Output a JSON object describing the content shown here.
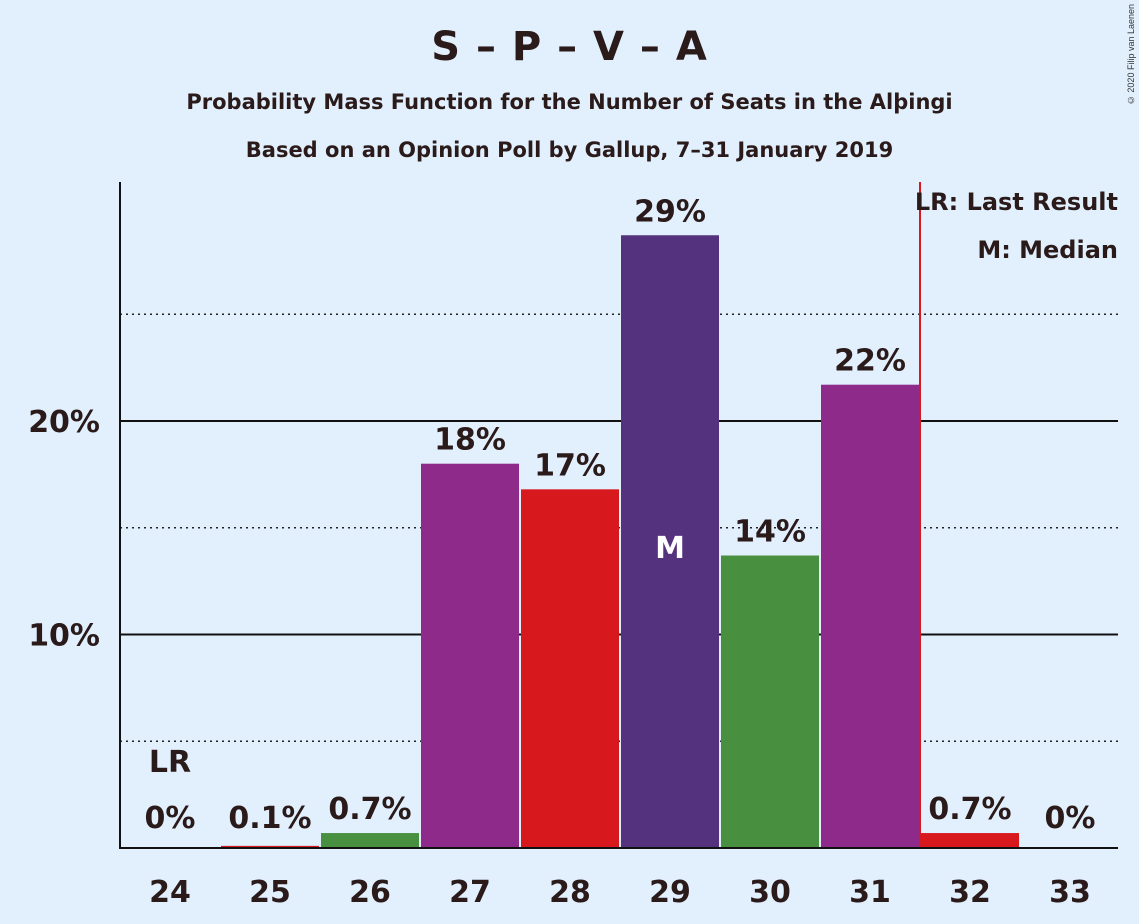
{
  "title": "S – P – V – A",
  "subtitle": "Probability Mass Function for the Number of Seats in the Alþingi",
  "subtitle2": "Based on an Opinion Poll by Gallup, 7–31 January 2019",
  "copyright": "© 2020 Filip van Laenen",
  "legend": {
    "last_result": "LR: Last Result",
    "median": "M: Median"
  },
  "chart_data": {
    "type": "bar",
    "title": "S – P – V – A",
    "subtitle": "Probability Mass Function for the Number of Seats in the Alþingi",
    "categories": [
      "24",
      "25",
      "26",
      "27",
      "28",
      "29",
      "30",
      "31",
      "32",
      "33"
    ],
    "values": [
      0,
      0.1,
      0.7,
      18,
      16.8,
      28.7,
      13.7,
      21.7,
      0.7,
      0
    ],
    "value_labels": [
      "0%",
      "0.1%",
      "0.7%",
      "18%",
      "17%",
      "29%",
      "14%",
      "22%",
      "0.7%",
      "0%"
    ],
    "bar_colors": [
      "#8e2a8a",
      "#d7191e",
      "#488f3f",
      "#8e2a8a",
      "#d7191e",
      "#55327e",
      "#488f3f",
      "#8e2a8a",
      "#d7191e",
      "#488f3f"
    ],
    "ylim": [
      0,
      31
    ],
    "yticks": [
      10,
      20
    ],
    "ytick_labels": [
      "10%",
      "20%"
    ],
    "minor_gridlines": [
      5,
      15,
      25
    ],
    "median_category": "29",
    "median_marker": "M",
    "last_result_category": "24",
    "last_result_marker": "LR",
    "majority_line_between": [
      "31",
      "32"
    ],
    "majority_line_color": "#d7191e",
    "legend_position": "top-right"
  }
}
